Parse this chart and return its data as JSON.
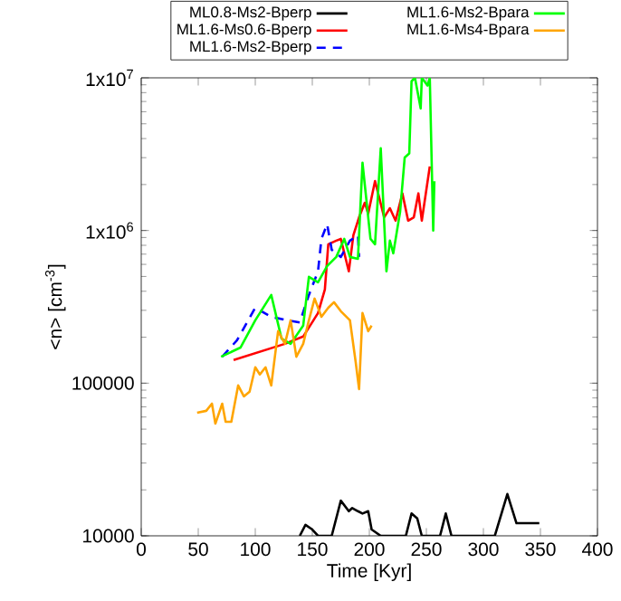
{
  "chart_data": {
    "type": "line",
    "xlabel": "Time [Kyr]",
    "ylabel": "<n> [cm$^{-3}$]",
    "log": "y",
    "legend": "top",
    "marker": "none",
    "xlim": [
      0,
      400
    ],
    "xticks": [
      0,
      50,
      100,
      150,
      200,
      250,
      300,
      350,
      400
    ],
    "ylim": [
      10000,
      10000000
    ],
    "yticks": [
      10000,
      100000,
      {
        "value": 1000000,
        "label": "1x10$^{6}$"
      },
      {
        "value": 10000000,
        "label": "1x10$^{7}$"
      }
    ],
    "series": [
      {
        "name": "ML0.8-Ms2-Bperp",
        "color": "#000000",
        "line_style": "solid",
        "x": [
          139,
          144,
          150,
          155,
          167,
          175,
          182,
          185,
          190,
          194,
          199,
          202,
          210,
          221,
          232,
          237,
          242,
          246,
          252,
          262,
          267,
          272,
          280,
          310,
          321,
          329,
          349
        ],
        "values": [
          10000,
          11800,
          11000,
          10000,
          10000,
          17000,
          14500,
          15200,
          14500,
          14000,
          14500,
          11000,
          10000,
          10000,
          10000,
          14000,
          13000,
          10000,
          10000,
          10000,
          14000,
          10000,
          10000,
          10000,
          18800,
          12100,
          12100
        ]
      },
      {
        "name": "ML1.6-Ms0.6-Bperp",
        "color": "#ff0000",
        "line_style": "solid",
        "x": [
          81,
          126,
          142,
          155,
          161,
          164,
          171,
          175,
          182,
          186,
          191,
          196,
          199,
          205,
          213,
          218,
          223,
          229,
          234,
          239,
          243,
          246,
          253
        ],
        "values": [
          142000,
          181000,
          202000,
          288000,
          410000,
          813000,
          858000,
          881000,
          540000,
          931000,
          1220000,
          1520000,
          1290000,
          2110000,
          1220000,
          1400000,
          1160000,
          1750000,
          1160000,
          1220000,
          1750000,
          1160000,
          2630000
        ]
      },
      {
        "name": "ML1.6-Ms2-Bperp",
        "color": "#0000ff",
        "line_style": "dashed",
        "x": [
          71,
          84,
          100,
          114,
          128,
          139,
          147,
          155,
          158,
          163,
          167,
          175,
          183,
          190,
          191
        ],
        "values": [
          149000,
          191000,
          312000,
          272000,
          258000,
          250000,
          378000,
          540000,
          881000,
          1100000,
          748000,
          671000,
          858000,
          931000,
          671000
        ]
      },
      {
        "name": "ML1.6-Ms2-Bpara",
        "color": "#00ff00",
        "line_style": "solid",
        "x": [
          70,
          87,
          100,
          114,
          123,
          131,
          142,
          147,
          155,
          163,
          171,
          178,
          183,
          190,
          194,
          201,
          205,
          210,
          215,
          218,
          221,
          227,
          231,
          235,
          237,
          240,
          245,
          246,
          251,
          253,
          256,
          257
        ],
        "values": [
          149000,
          171000,
          258000,
          378000,
          196000,
          181000,
          238000,
          497000,
          458000,
          585000,
          671000,
          881000,
          671000,
          652000,
          2780000,
          881000,
          813000,
          3460000,
          540000,
          858000,
          709000,
          1330000,
          3010000,
          3200000,
          9500000,
          10000000,
          6300000,
          10000000,
          8900000,
          10000000,
          1000000,
          2100000
        ]
      },
      {
        "name": "ML1.6-Ms4-Bpara",
        "color": "#ffa500",
        "line_style": "solid",
        "x": [
          49,
          57,
          62,
          65,
          71,
          74,
          79,
          85,
          90,
          95,
          100,
          104,
          109,
          114,
          120,
          126,
          131,
          136,
          142,
          147,
          152,
          158,
          164,
          169,
          175,
          183,
          188,
          191,
          194,
          199,
          202
        ],
        "values": [
          64100,
          65900,
          73400,
          54300,
          73400,
          55800,
          55800,
          96600,
          81900,
          88000,
          127000,
          114000,
          127000,
          96600,
          219000,
          181000,
          258000,
          149000,
          181000,
          258000,
          358000,
          272000,
          312000,
          339000,
          296000,
          258000,
          138000,
          91400,
          288000,
          219000,
          238000
        ]
      }
    ]
  }
}
